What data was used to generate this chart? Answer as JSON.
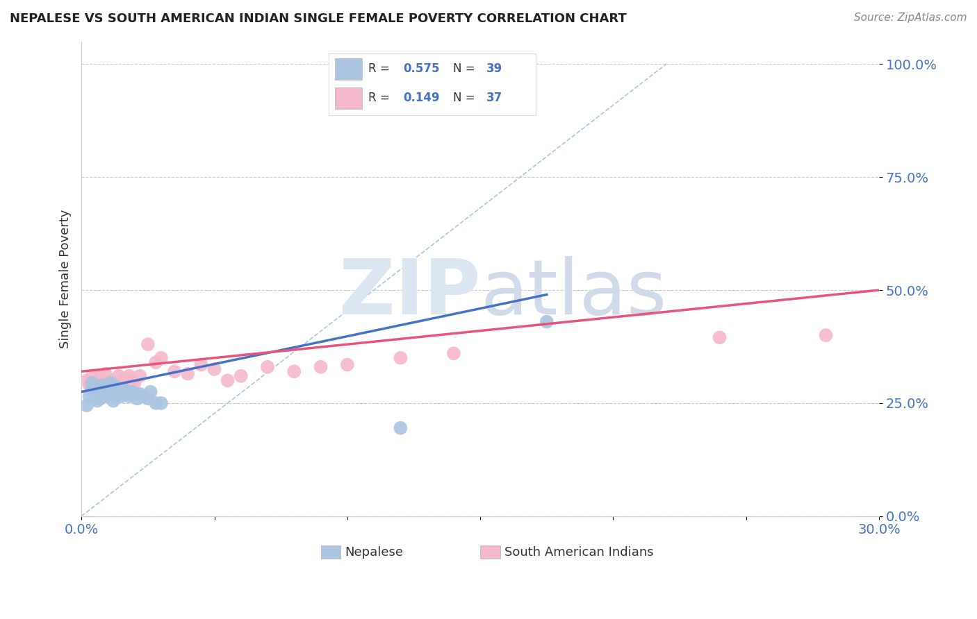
{
  "title": "NEPALESE VS SOUTH AMERICAN INDIAN SINGLE FEMALE POVERTY CORRELATION CHART",
  "source": "Source: ZipAtlas.com",
  "ylabel": "Single Female Poverty",
  "xmin": 0.0,
  "xmax": 0.3,
  "ymin": 0.0,
  "ymax": 1.05,
  "nepalese_R": 0.575,
  "nepalese_N": 39,
  "south_american_R": 0.149,
  "south_american_N": 37,
  "nepalese_color": "#aac4e2",
  "south_american_color": "#f5b8cb",
  "nepalese_line_color": "#4472c4",
  "south_american_line_color": "#e8547a",
  "diagonal_color": "#aac4e2",
  "watermark_zip": "ZIP",
  "watermark_atlas": "atlas",
  "legend_label_1": "Nepalese",
  "legend_label_2": "South American Indians",
  "ytick_values": [
    0.0,
    0.25,
    0.5,
    0.75,
    1.0
  ],
  "nepalese_x": [
    0.002,
    0.003,
    0.004,
    0.004,
    0.005,
    0.005,
    0.006,
    0.006,
    0.007,
    0.007,
    0.008,
    0.008,
    0.009,
    0.009,
    0.01,
    0.01,
    0.011,
    0.011,
    0.012,
    0.012,
    0.013,
    0.013,
    0.014,
    0.015,
    0.015,
    0.016,
    0.017,
    0.018,
    0.019,
    0.02,
    0.021,
    0.022,
    0.023,
    0.025,
    0.026,
    0.028,
    0.03,
    0.12,
    0.175
  ],
  "nepalese_y": [
    0.245,
    0.265,
    0.28,
    0.295,
    0.27,
    0.285,
    0.255,
    0.275,
    0.26,
    0.285,
    0.27,
    0.29,
    0.265,
    0.28,
    0.27,
    0.285,
    0.275,
    0.295,
    0.255,
    0.28,
    0.265,
    0.285,
    0.27,
    0.275,
    0.265,
    0.28,
    0.27,
    0.265,
    0.275,
    0.27,
    0.26,
    0.27,
    0.265,
    0.26,
    0.275,
    0.25,
    0.25,
    0.195,
    0.43
  ],
  "south_american_x": [
    0.002,
    0.003,
    0.004,
    0.005,
    0.006,
    0.007,
    0.008,
    0.009,
    0.01,
    0.011,
    0.012,
    0.013,
    0.014,
    0.015,
    0.016,
    0.017,
    0.018,
    0.019,
    0.02,
    0.022,
    0.025,
    0.028,
    0.03,
    0.035,
    0.04,
    0.045,
    0.05,
    0.055,
    0.06,
    0.07,
    0.08,
    0.09,
    0.1,
    0.12,
    0.14,
    0.24,
    0.28
  ],
  "south_american_y": [
    0.3,
    0.29,
    0.31,
    0.295,
    0.285,
    0.31,
    0.295,
    0.315,
    0.285,
    0.3,
    0.295,
    0.28,
    0.31,
    0.295,
    0.305,
    0.29,
    0.31,
    0.3,
    0.295,
    0.31,
    0.38,
    0.34,
    0.35,
    0.32,
    0.315,
    0.335,
    0.325,
    0.3,
    0.31,
    0.33,
    0.32,
    0.33,
    0.335,
    0.35,
    0.36,
    0.395,
    0.4
  ],
  "nepalese_line_x0": 0.0,
  "nepalese_line_y0": 0.275,
  "nepalese_line_x1": 0.175,
  "nepalese_line_y1": 0.49,
  "sa_line_x0": 0.0,
  "sa_line_y0": 0.32,
  "sa_line_x1": 0.3,
  "sa_line_y1": 0.5
}
